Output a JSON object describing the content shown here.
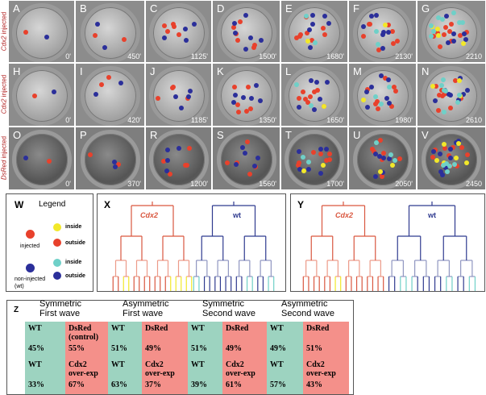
{
  "rows": [
    {
      "label_italic": "Cdx2",
      "label_rest": " injected",
      "panels": [
        {
          "letter": "A",
          "time": "0'"
        },
        {
          "letter": "B",
          "time": "450'"
        },
        {
          "letter": "C",
          "time": "1125'"
        },
        {
          "letter": "D",
          "time": "1500'"
        },
        {
          "letter": "E",
          "time": "1680'"
        },
        {
          "letter": "F",
          "time": "2130'"
        },
        {
          "letter": "G",
          "time": "2210"
        }
      ]
    },
    {
      "label_italic": "Cdx2",
      "label_rest": " injected",
      "panels": [
        {
          "letter": "H",
          "time": "0'"
        },
        {
          "letter": "I",
          "time": "420'"
        },
        {
          "letter": "J",
          "time": "1185'"
        },
        {
          "letter": "K",
          "time": "1350'"
        },
        {
          "letter": "L",
          "time": "1650'"
        },
        {
          "letter": "M",
          "time": "1980'"
        },
        {
          "letter": "N",
          "time": "2610"
        }
      ]
    },
    {
      "label_italic": "DsRed",
      "label_rest": " injected",
      "panels": [
        {
          "letter": "O",
          "time": "0'"
        },
        {
          "letter": "P",
          "time": "370'"
        },
        {
          "letter": "R",
          "time": "1200'"
        },
        {
          "letter": "S",
          "time": "1560'"
        },
        {
          "letter": "T",
          "time": "1700'"
        },
        {
          "letter": "U",
          "time": "2050'"
        },
        {
          "letter": "V",
          "time": "2450"
        }
      ]
    }
  ],
  "legend": {
    "letter": "W",
    "title": "Legend",
    "injected": "injected",
    "noninjected": "non-injected",
    "wt": "(wt)",
    "inside": "inside",
    "outside": "outside"
  },
  "dendro_x": {
    "letter": "X",
    "left": "Cdx2",
    "right": "wt"
  },
  "dendro_y": {
    "letter": "Y",
    "left": "Cdx2",
    "right": "wt"
  },
  "table": {
    "letter": "Z",
    "headers": [
      [
        "Symmetric",
        "First wave"
      ],
      [
        "Asymmetric",
        "First wave"
      ],
      [
        "Symmetric",
        "Second wave"
      ],
      [
        "Asymmetric",
        "Second wave"
      ]
    ],
    "row1": [
      [
        "WT",
        "",
        "45%"
      ],
      [
        "DsRed",
        "(control)",
        "55%"
      ],
      [
        "WT",
        "",
        "51%"
      ],
      [
        "DsRed",
        "",
        "49%"
      ],
      [
        "WT",
        "",
        "51%"
      ],
      [
        "DsRed",
        "",
        "49%"
      ],
      [
        "WT",
        "",
        "49%"
      ],
      [
        "DsRed",
        "",
        "51%"
      ]
    ],
    "row2": [
      [
        "WT",
        "",
        "33%"
      ],
      [
        "Cdx2",
        "over-exp",
        "67%"
      ],
      [
        "WT",
        "",
        "63%"
      ],
      [
        "Cdx2",
        "over-exp",
        "37%"
      ],
      [
        "WT",
        "",
        "39%"
      ],
      [
        "Cdx2",
        "over-exp",
        "61%"
      ],
      [
        "WT",
        "",
        "57%"
      ],
      [
        "Cdx2",
        "over-exp",
        "43%"
      ]
    ]
  },
  "colors": {
    "red": "#e8412c",
    "blue": "#2b2f9a",
    "yellow": "#f2e82a",
    "cyan": "#6fd0c8",
    "cdx2": "#d9573f",
    "wt": "#2f3a8f"
  }
}
